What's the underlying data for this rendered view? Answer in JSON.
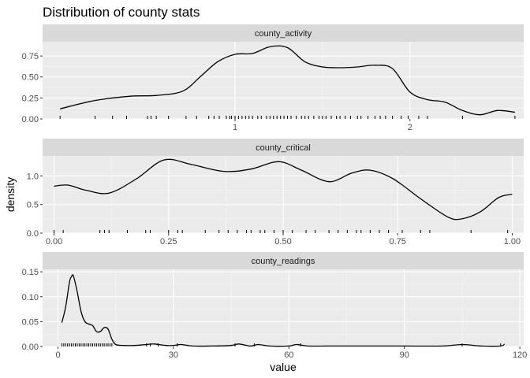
{
  "title": "Distribution of county stats",
  "xlabel": "value",
  "ylabel": "density",
  "colors": {
    "panel_bg": "#ebebeb",
    "strip_bg": "#d9d9d9",
    "grid_major": "#ffffff",
    "line": "#000000"
  },
  "chart_data": [
    {
      "type": "area",
      "name": "county_activity",
      "xlim": [
        -0.1,
        2.65
      ],
      "ylim": [
        0,
        0.92
      ],
      "x_ticks": [
        1,
        2
      ],
      "x_tick_labels": [
        "1",
        "2"
      ],
      "y_ticks": [
        0,
        0.25,
        0.5,
        0.75
      ],
      "y_tick_labels": [
        "0.00",
        "0.25",
        "0.50",
        "0.75"
      ],
      "density": {
        "x": [
          0.0,
          0.2,
          0.4,
          0.55,
          0.7,
          0.8,
          0.9,
          1.0,
          1.1,
          1.2,
          1.3,
          1.4,
          1.5,
          1.6,
          1.7,
          1.8,
          1.9,
          2.0,
          2.1,
          2.2,
          2.3,
          2.4,
          2.5,
          2.6
        ],
        "y": [
          0.12,
          0.22,
          0.27,
          0.28,
          0.33,
          0.5,
          0.68,
          0.77,
          0.78,
          0.86,
          0.85,
          0.68,
          0.62,
          0.61,
          0.62,
          0.64,
          0.6,
          0.32,
          0.23,
          0.2,
          0.1,
          0.05,
          0.1,
          0.08
        ]
      },
      "rug": [
        0.0,
        0.2,
        0.3,
        0.38,
        0.5,
        0.52,
        0.55,
        0.62,
        0.72,
        0.78,
        0.85,
        0.88,
        0.91,
        0.95,
        0.97,
        0.98,
        1.0,
        1.02,
        1.04,
        1.06,
        1.08,
        1.1,
        1.13,
        1.15,
        1.18,
        1.2,
        1.22,
        1.24,
        1.26,
        1.28,
        1.3,
        1.32,
        1.35,
        1.38,
        1.4,
        1.42,
        1.45,
        1.48,
        1.5,
        1.52,
        1.55,
        1.58,
        1.6,
        1.63,
        1.66,
        1.7,
        1.72,
        1.76,
        1.8,
        1.83,
        1.86,
        1.9,
        1.95,
        1.99,
        2.05,
        2.1,
        2.3,
        2.6
      ]
    },
    {
      "type": "area",
      "name": "county_critical",
      "xlim": [
        -0.025,
        1.025
      ],
      "ylim": [
        0,
        1.35
      ],
      "x_ticks": [
        0,
        0.25,
        0.5,
        0.75,
        1
      ],
      "x_tick_labels": [
        "0.00",
        "0.25",
        "0.50",
        "0.75",
        "1.00"
      ],
      "y_ticks": [
        0,
        0.5,
        1
      ],
      "y_tick_labels": [
        "0.0",
        "0.5",
        "1.0"
      ],
      "density": {
        "x": [
          0.0,
          0.03,
          0.07,
          0.12,
          0.18,
          0.24,
          0.3,
          0.37,
          0.43,
          0.49,
          0.54,
          0.6,
          0.65,
          0.69,
          0.74,
          0.8,
          0.86,
          0.89,
          0.93,
          0.97,
          1.0
        ],
        "y": [
          0.82,
          0.84,
          0.75,
          0.7,
          0.95,
          1.28,
          1.2,
          1.08,
          1.12,
          1.25,
          1.1,
          0.9,
          1.05,
          1.1,
          0.95,
          0.6,
          0.28,
          0.25,
          0.37,
          0.62,
          0.68
        ]
      },
      "rug": [
        0.0,
        0.02,
        0.1,
        0.11,
        0.12,
        0.16,
        0.2,
        0.21,
        0.25,
        0.27,
        0.28,
        0.33,
        0.36,
        0.38,
        0.4,
        0.42,
        0.43,
        0.45,
        0.46,
        0.48,
        0.5,
        0.52,
        0.55,
        0.57,
        0.6,
        0.62,
        0.64,
        0.66,
        0.67,
        0.69,
        0.71,
        0.73,
        0.76,
        0.8,
        0.82,
        0.91,
        0.99
      ]
    },
    {
      "type": "area",
      "name": "county_readings",
      "xlim": [
        -4,
        121
      ],
      "ylim": [
        0,
        0.155
      ],
      "x_ticks": [
        0,
        30,
        60,
        90,
        120
      ],
      "x_tick_labels": [
        "0",
        "30",
        "60",
        "90",
        "120"
      ],
      "y_ticks": [
        0,
        0.05,
        0.1,
        0.15
      ],
      "y_tick_labels": [
        "0.00",
        "0.05",
        "0.10",
        "0.15"
      ],
      "density": {
        "x": [
          1,
          2,
          3,
          3.5,
          4,
          5,
          6,
          7,
          8,
          9,
          10,
          11,
          12,
          13,
          14,
          15,
          17,
          20,
          23,
          25,
          28,
          30,
          32,
          35,
          40,
          45,
          47,
          50,
          52,
          55,
          60,
          62,
          65,
          70,
          80,
          90,
          100,
          105,
          110,
          115,
          116
        ],
        "y": [
          0.048,
          0.08,
          0.13,
          0.14,
          0.142,
          0.11,
          0.07,
          0.05,
          0.045,
          0.042,
          0.03,
          0.03,
          0.038,
          0.035,
          0.015,
          0.004,
          0.002,
          0.002,
          0.004,
          0.005,
          0.002,
          0.002,
          0.004,
          0.001,
          0.001,
          0.002,
          0.005,
          0.001,
          0.004,
          0.001,
          0.001,
          0.004,
          0.001,
          0.001,
          0.001,
          0.001,
          0.001,
          0.004,
          0.001,
          0.001,
          0.005
        ]
      },
      "rug": [
        1,
        1.5,
        2,
        2.5,
        3,
        3.5,
        4,
        4.5,
        5,
        5.5,
        6,
        6.5,
        7,
        7.5,
        8,
        8.5,
        9,
        9.5,
        10,
        10.5,
        11,
        11.5,
        12,
        12.5,
        13,
        13.5,
        14,
        23,
        24,
        26,
        31,
        46,
        51,
        63,
        105,
        115
      ]
    }
  ]
}
